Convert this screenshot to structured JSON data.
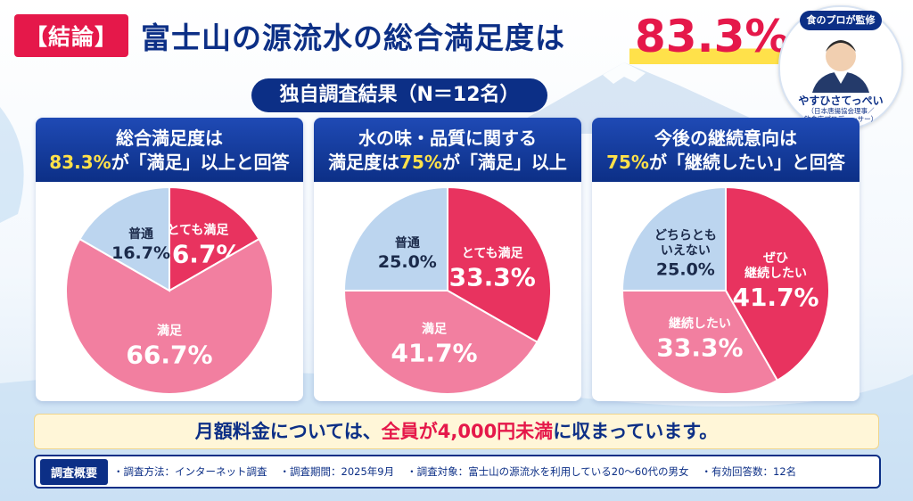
{
  "header": {
    "tag": "【結論】",
    "title": "富士山の源流水の総合満足度は",
    "highlight": "83.3%"
  },
  "survey_pill": "独自調査結果（N＝12名）",
  "expert": {
    "badge": "食のプロが監修",
    "name": "やすひさてっぺい",
    "role": "（日本唐揚協会理事／\n飲食店プロデューサー）"
  },
  "panels": [
    {
      "head_line1": "総合満足度は",
      "head_line2_a": "83.3%",
      "head_line2_b": "が「満足」以上と回答"
    },
    {
      "head_line1": "水の味・品質に関する",
      "head_line2_a": "満足度は",
      "head_line2_b": "75%",
      "head_line2_c": "が「満足」以上"
    },
    {
      "head_line1": "今後の継続意向は",
      "head_line2_a": "75%",
      "head_line2_b": "が「継続したい」と回答"
    }
  ],
  "chart_data": [
    {
      "type": "pie",
      "title": "総合満足度",
      "slices": [
        {
          "label": "とても満足",
          "value": 16.7,
          "display": "16.7%",
          "color": "#e8335f"
        },
        {
          "label": "満足",
          "value": 66.7,
          "display": "66.7%",
          "color": "#f27fa0"
        },
        {
          "label": "普通",
          "value": 16.7,
          "display": "16.7%",
          "color": "#bcd5ef"
        }
      ]
    },
    {
      "type": "pie",
      "title": "水の味・品質に関する満足度",
      "slices": [
        {
          "label": "とても満足",
          "value": 33.3,
          "display": "33.3%",
          "color": "#e8335f"
        },
        {
          "label": "満足",
          "value": 41.7,
          "display": "41.7%",
          "color": "#f27fa0"
        },
        {
          "label": "普通",
          "value": 25.0,
          "display": "25.0%",
          "color": "#bcd5ef"
        }
      ]
    },
    {
      "type": "pie",
      "title": "今後の継続意向",
      "slices": [
        {
          "label": "ぜひ\n継続したい",
          "value": 41.7,
          "display": "41.7%",
          "color": "#e8335f"
        },
        {
          "label": "継続したい",
          "value": 33.3,
          "display": "33.3%",
          "color": "#f27fa0"
        },
        {
          "label": "どちらとも\nいえない",
          "value": 25.0,
          "display": "25.0%",
          "color": "#bcd5ef"
        }
      ]
    }
  ],
  "fee": {
    "a": "月額料金については、",
    "b": "全員が4,000円未満",
    "c": "に収まっています。"
  },
  "survey": {
    "tag": "調査概要",
    "items": [
      "・調査方法：インターネット調査",
      "・調査期間：2025年9月",
      "・調査対象：富士山の源流水を利用している20〜60代の男女",
      "・有効回答数：12名"
    ]
  }
}
